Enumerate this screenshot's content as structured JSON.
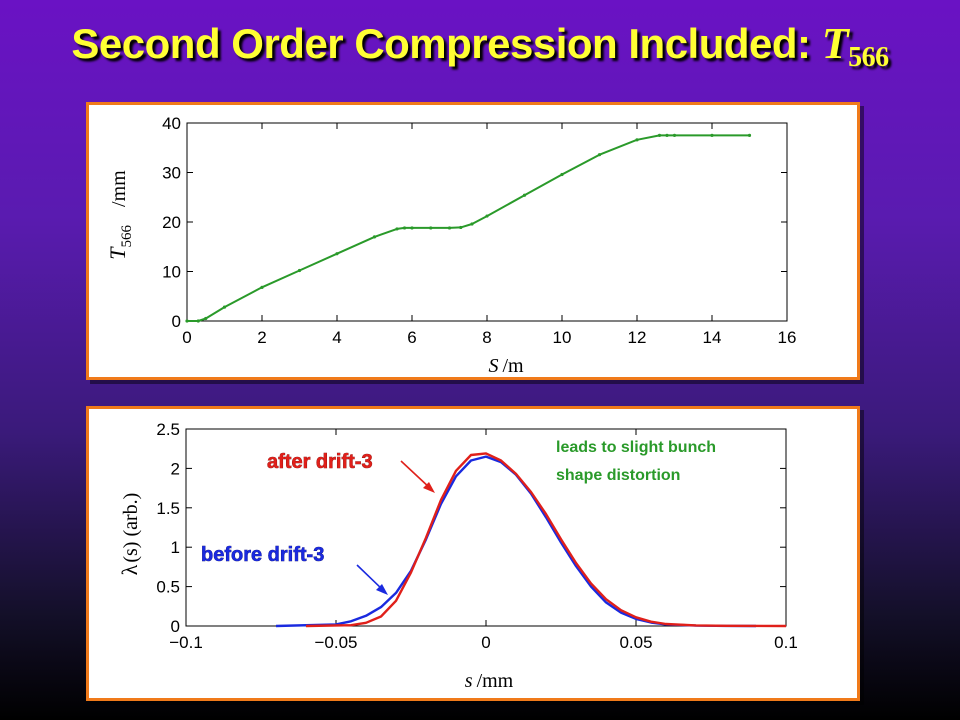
{
  "slide": {
    "title_prefix": "Second Order Compression Included: ",
    "title_var": "T",
    "title_sub": "566"
  },
  "chart_data": [
    {
      "type": "line",
      "xlabel_var": "S",
      "xlabel_unit": "/m",
      "ylabel_var": "T",
      "ylabel_sub": "566",
      "ylabel_unit": "/mm",
      "xlim": [
        0,
        16
      ],
      "ylim": [
        0,
        40
      ],
      "xticks": [
        0,
        2,
        4,
        6,
        8,
        10,
        12,
        14,
        16
      ],
      "yticks": [
        0,
        10,
        20,
        30,
        40
      ],
      "grid": false,
      "series": [
        {
          "color": "#2a9a2a",
          "x": [
            0,
            0.3,
            0.5,
            1,
            2,
            3,
            4,
            5,
            5.6,
            5.8,
            6,
            6.5,
            7,
            7.3,
            7.6,
            8,
            9,
            10,
            11,
            12,
            12.6,
            12.8,
            13,
            14,
            15
          ],
          "y": [
            0,
            0,
            0.5,
            2.8,
            6.8,
            10.2,
            13.6,
            17.0,
            18.6,
            18.8,
            18.8,
            18.8,
            18.8,
            18.9,
            19.6,
            21.2,
            25.4,
            29.6,
            33.6,
            36.6,
            37.5,
            37.5,
            37.5,
            37.5,
            37.5
          ]
        }
      ]
    },
    {
      "type": "line",
      "xlabel_var": "s",
      "xlabel_unit": "/mm",
      "ylabel_var": "λ",
      "ylabel_rest": "(s) (arb.)",
      "xlim": [
        -0.1,
        0.1
      ],
      "ylim": [
        0,
        2.5
      ],
      "xticks": [
        -0.1,
        -0.05,
        0,
        0.05,
        0.1
      ],
      "xtick_labels": [
        "−0.1",
        "−0.05",
        "0",
        "0.05",
        "0.1"
      ],
      "yticks": [
        0,
        0.5,
        1,
        1.5,
        2,
        2.5
      ],
      "ytick_labels": [
        "0",
        "0.5",
        "1",
        "1.5",
        "2",
        "2.5"
      ],
      "grid": false,
      "series": [
        {
          "name": "before drift-3",
          "color": "#1a2adf",
          "x": [
            -0.07,
            -0.05,
            -0.045,
            -0.04,
            -0.035,
            -0.03,
            -0.025,
            -0.02,
            -0.015,
            -0.01,
            -0.005,
            0,
            0.005,
            0.01,
            0.015,
            0.02,
            0.025,
            0.03,
            0.035,
            0.04,
            0.045,
            0.05,
            0.055,
            0.06,
            0.07,
            0.08,
            0.09
          ],
          "y": [
            0,
            0.02,
            0.06,
            0.13,
            0.24,
            0.42,
            0.7,
            1.1,
            1.55,
            1.9,
            2.1,
            2.15,
            2.08,
            1.92,
            1.68,
            1.38,
            1.06,
            0.76,
            0.5,
            0.3,
            0.17,
            0.09,
            0.045,
            0.02,
            0.005,
            0.001,
            0
          ]
        },
        {
          "name": "after drift-3",
          "color": "#e0201a",
          "x": [
            -0.06,
            -0.045,
            -0.04,
            -0.035,
            -0.03,
            -0.025,
            -0.02,
            -0.015,
            -0.01,
            -0.005,
            0,
            0.005,
            0.01,
            0.015,
            0.02,
            0.025,
            0.03,
            0.035,
            0.04,
            0.045,
            0.05,
            0.055,
            0.06,
            0.07,
            0.08,
            0.1
          ],
          "y": [
            0,
            0.01,
            0.04,
            0.12,
            0.32,
            0.68,
            1.12,
            1.6,
            1.97,
            2.17,
            2.19,
            2.1,
            1.93,
            1.7,
            1.42,
            1.1,
            0.8,
            0.54,
            0.34,
            0.2,
            0.11,
            0.055,
            0.025,
            0.007,
            0.002,
            0
          ]
        }
      ],
      "annotations": {
        "after_label": "after drift-3",
        "before_label": "before drift-3",
        "note_line1": "leads to slight bunch",
        "note_line2": "shape distortion",
        "after_color": "#e0201a",
        "before_color": "#1a2adf",
        "note_color": "#2a9a2a"
      }
    }
  ]
}
